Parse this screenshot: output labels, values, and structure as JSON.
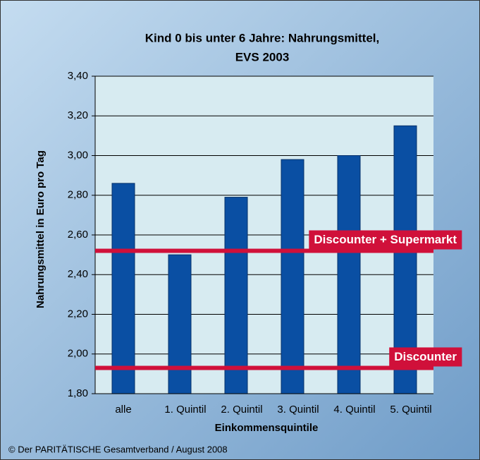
{
  "chart_data": {
    "type": "bar",
    "title_lines": [
      "Kind 0 bis unter 6 Jahre: Nahrungsmittel,",
      "EVS 2003"
    ],
    "x_label": "Einkommensquintile",
    "y_label": "Nahrungsmittel in Euro pro Tag",
    "categories": [
      "alle",
      "1. Quintil",
      "2. Quintil",
      "3. Quintil",
      "4. Quintil",
      "5. Quintil"
    ],
    "values": [
      2.86,
      2.5,
      2.79,
      2.98,
      3.0,
      3.15
    ],
    "color": "#0a4fa3",
    "ylim": [
      1.8,
      3.4
    ],
    "yticks": [
      {
        "value": 1.8,
        "label": "1,80"
      },
      {
        "value": 2.0,
        "label": "2,00"
      },
      {
        "value": 2.2,
        "label": "2,20"
      },
      {
        "value": 2.4,
        "label": "2,40"
      },
      {
        "value": 2.6,
        "label": "2,60"
      },
      {
        "value": 2.8,
        "label": "2,80"
      },
      {
        "value": 3.0,
        "label": "3,00"
      },
      {
        "value": 3.2,
        "label": "3,20"
      },
      {
        "value": 3.4,
        "label": "3,40"
      }
    ],
    "grid": true,
    "reference_lines": [
      {
        "label": "Discounter + Supermarkt",
        "value": 2.52,
        "color": "#d0103a"
      },
      {
        "label": "Discounter",
        "value": 1.93,
        "color": "#d0103a"
      }
    ],
    "footer": "© Der PARITÄTISCHE Gesamtverband / August 2008"
  }
}
